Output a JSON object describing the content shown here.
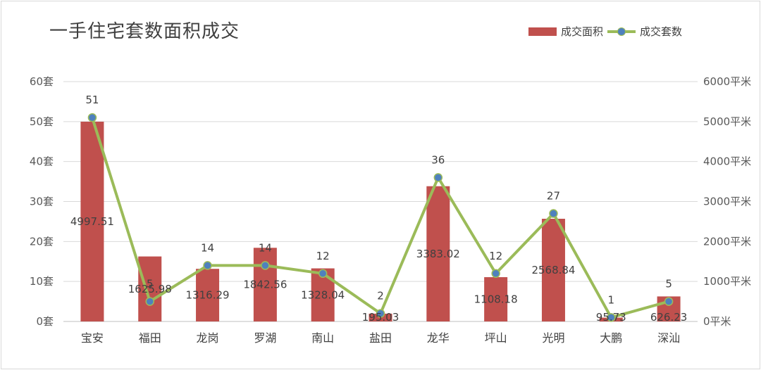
{
  "chart_data": {
    "type": "bar",
    "title": "一手住宅套数面积成交",
    "categories": [
      "宝安",
      "福田",
      "龙岗",
      "罗湖",
      "南山",
      "盐田",
      "龙华",
      "坪山",
      "光明",
      "大鹏",
      "深汕"
    ],
    "series": [
      {
        "name": "成交面积",
        "type": "bar",
        "axis": "right",
        "color": "#c0504d",
        "values": [
          4997.51,
          1625.98,
          1316.29,
          1842.56,
          1328.04,
          195.03,
          3383.02,
          1108.18,
          2568.84,
          95.73,
          626.23
        ],
        "labels": [
          "4997.51",
          "1625.98",
          "1316.29",
          "1842.56",
          "1328.04",
          "195.03",
          "3383.02",
          "1108.18",
          "2568.84",
          "95.73",
          "626.23"
        ]
      },
      {
        "name": "成交套数",
        "type": "line",
        "axis": "left",
        "color": "#9bbb59",
        "marker_color": "#4f81bd",
        "values": [
          51,
          5,
          14,
          14,
          12,
          2,
          36,
          12,
          27,
          1,
          5
        ],
        "labels": [
          "51",
          "5",
          "14",
          "14",
          "12",
          "2",
          "36",
          "12",
          "27",
          "1",
          "5"
        ]
      }
    ],
    "y_left": {
      "ylim": [
        0,
        60
      ],
      "ticks": [
        "0套",
        "10套",
        "20套",
        "30套",
        "40套",
        "50套",
        "60套"
      ]
    },
    "y_right": {
      "ylim": [
        0,
        6000
      ],
      "ticks": [
        "0平米",
        "1000平米",
        "2000平米",
        "3000平米",
        "4000平米",
        "5000平米",
        "6000平米"
      ]
    },
    "grid": true,
    "legend_position": "top-right"
  }
}
